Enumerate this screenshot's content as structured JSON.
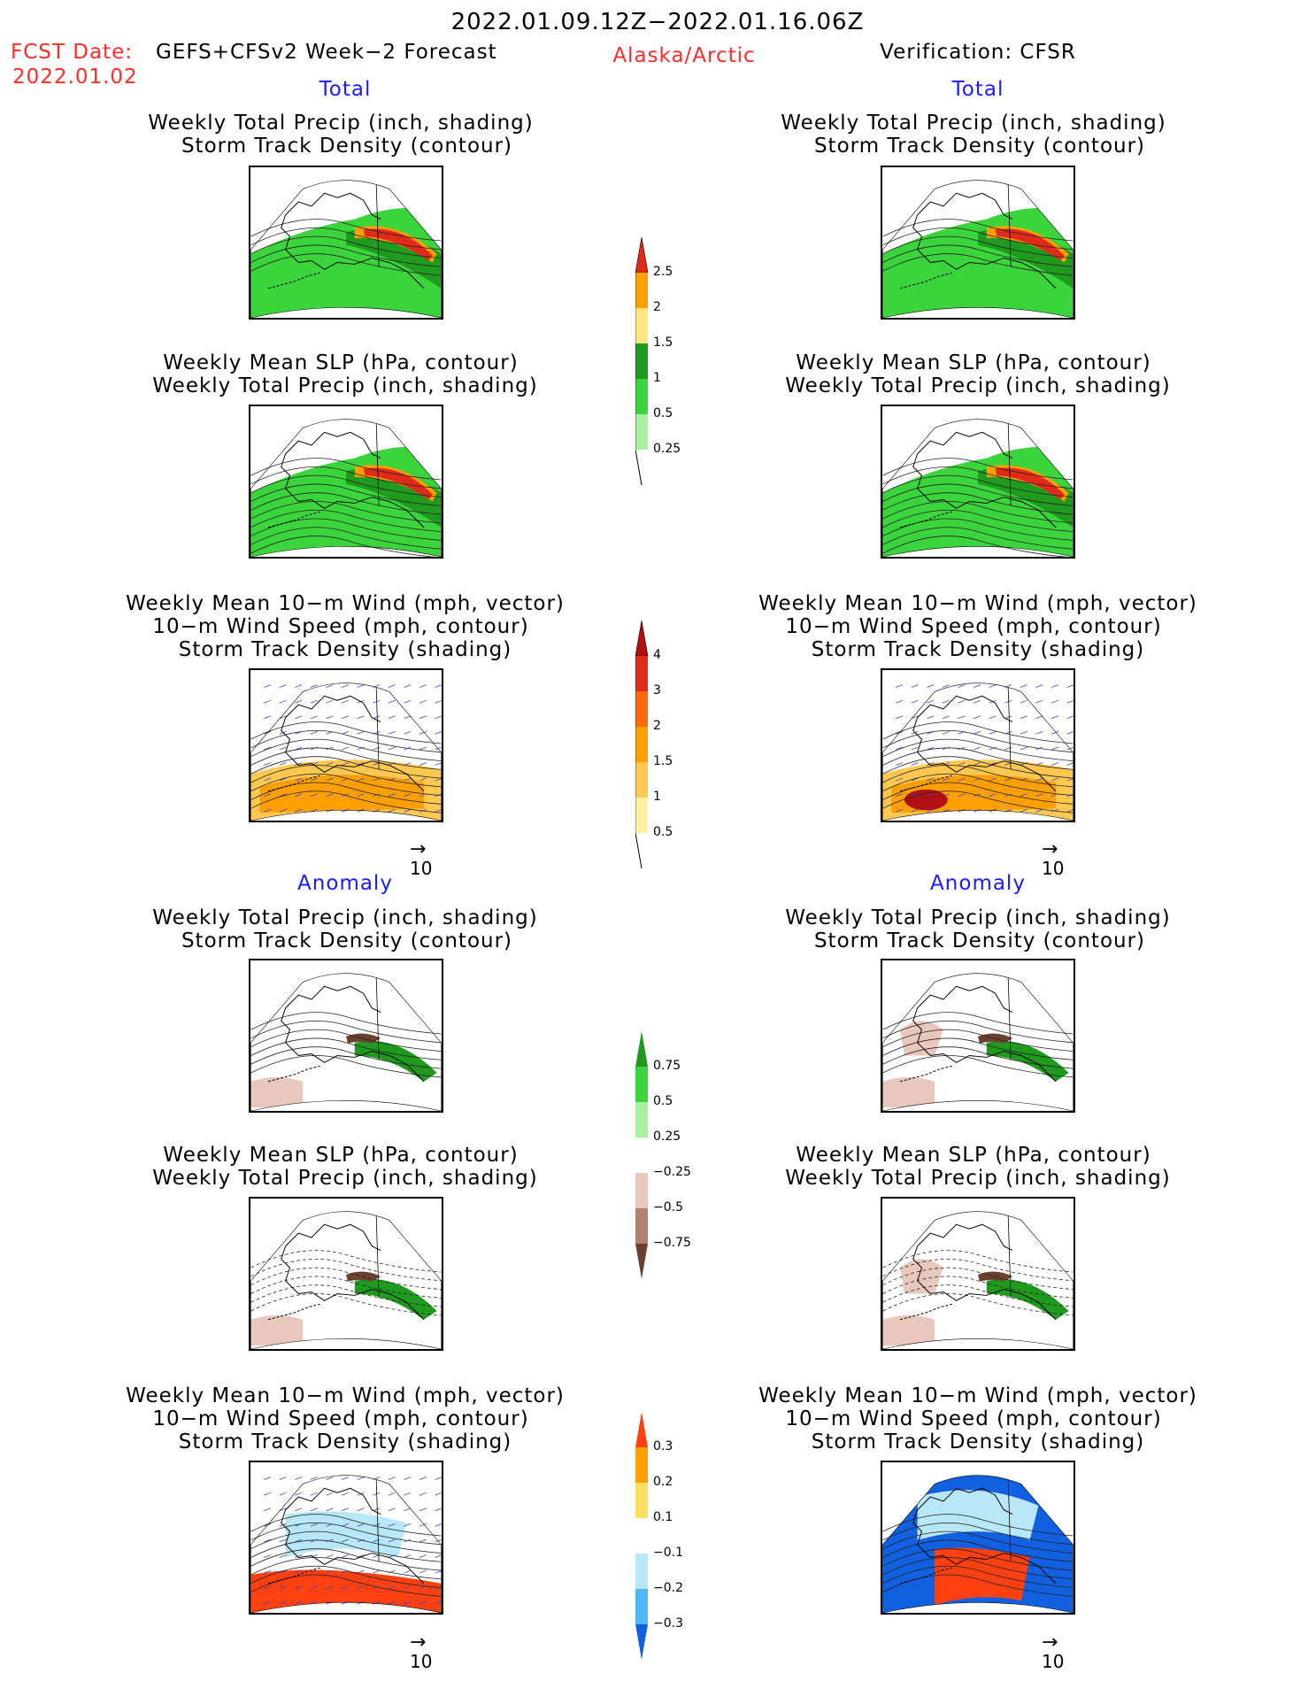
{
  "header": {
    "period": "2022.01.09.12Z−2022.01.16.06Z",
    "fcst_label": "FCST Date:",
    "model": "GEFS+CFSv2 Week−2 Forecast",
    "fcst_date": "2022.01.02",
    "region": "Alaska/Arctic",
    "verification": "Verification: CFSR"
  },
  "sections": {
    "total": "Total",
    "anomaly": "Anomaly"
  },
  "titles": {
    "precip_track": [
      "Weekly Total Precip (inch, shading)",
      "Storm Track Density (contour)"
    ],
    "slp_precip": [
      "Weekly Mean SLP (hPa, contour)",
      "Weekly Total Precip (inch, shading)"
    ],
    "wind": [
      "Weekly Mean 10−m Wind (mph, vector)",
      "10−m Wind Speed (mph, contour)",
      "Storm Track Density (shading)"
    ]
  },
  "vector_ref": "10",
  "colorbars": {
    "precip_total": {
      "labels": [
        "2.5",
        "2",
        "1.5",
        "1",
        "0.5",
        "0.25"
      ],
      "colors": [
        "#e02a1a",
        "#ffa000",
        "#ffe680",
        "#1f9a1f",
        "#3cd43c",
        "#a8f0a0"
      ]
    },
    "track_total": {
      "labels": [
        "4",
        "3",
        "2",
        "1.5",
        "1",
        "0.5"
      ],
      "colors": [
        "#b01010",
        "#e02a1a",
        "#ff6a10",
        "#ffa000",
        "#ffc850",
        "#fff0a0"
      ]
    },
    "precip_anom": {
      "labels": [
        "0.75",
        "0.5",
        "0.25",
        "−0.25",
        "−0.5",
        "−0.75"
      ],
      "colors": [
        "#1f9a1f",
        "#3cd43c",
        "#a8f0a0",
        "#ffffff",
        "#e8c8bc",
        "#b08070",
        "#6a4030"
      ]
    },
    "track_anom": {
      "labels": [
        "0.3",
        "0.2",
        "0.1",
        "−0.1",
        "−0.2",
        "−0.3"
      ],
      "colors": [
        "#ff4010",
        "#ffa000",
        "#ffe060",
        "#ffffff",
        "#b8e8f8",
        "#50b8f0",
        "#1060e0"
      ]
    }
  }
}
